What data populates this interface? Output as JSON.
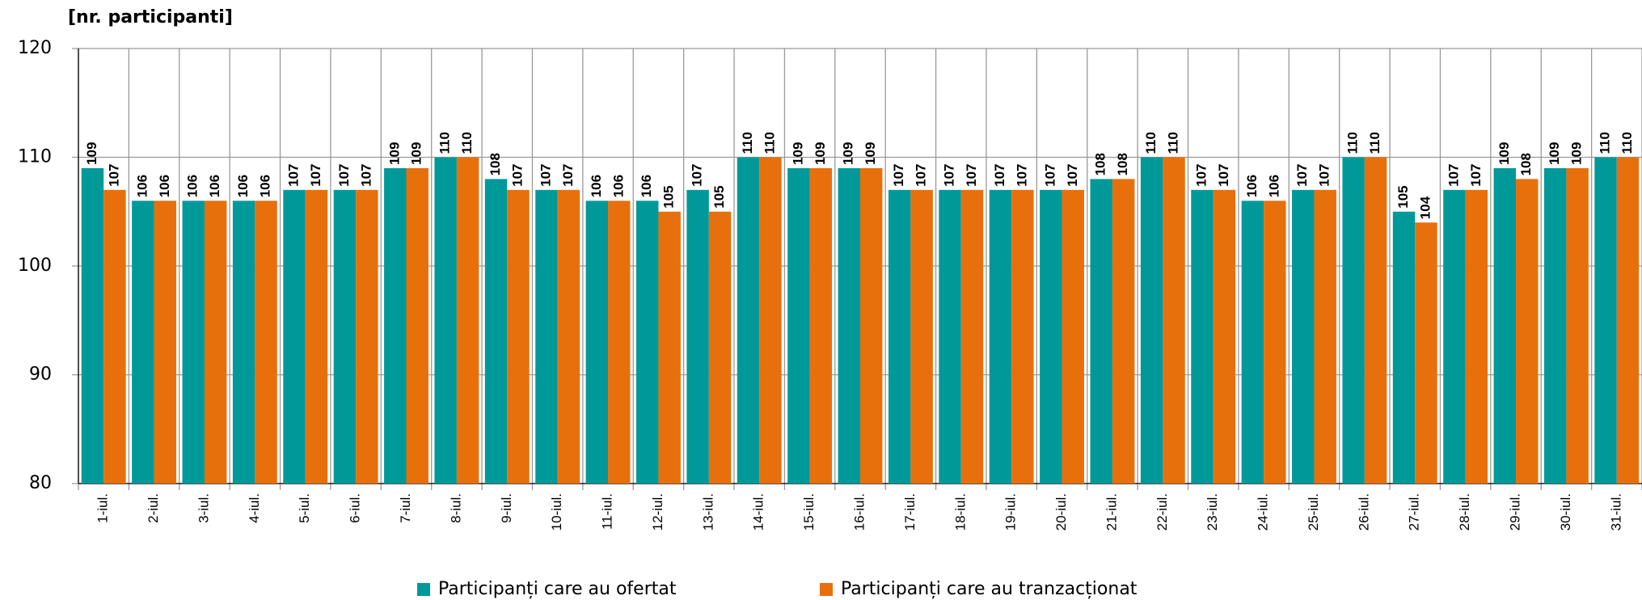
{
  "chart_data": {
    "type": "bar",
    "y_label": "[nr. participanti]",
    "categories": [
      "1-iul.",
      "2-iul.",
      "3-iul.",
      "4-iul.",
      "5-iul.",
      "6-iul.",
      "7-iul.",
      "8-iul.",
      "9-iul.",
      "10-iul.",
      "11-iul.",
      "12-iul.",
      "13-iul.",
      "14-iul.",
      "15-iul.",
      "16-iul.",
      "17-iul.",
      "18-iul.",
      "19-iul.",
      "20-iul.",
      "21-iul.",
      "22-iul.",
      "23-iul.",
      "24-iul.",
      "25-iul.",
      "26-iul.",
      "27-iul.",
      "28-iul.",
      "29-iul.",
      "30-iul.",
      "31-iul."
    ],
    "series": [
      {
        "name": "Participanți care au ofertat",
        "color": "#009999",
        "values": [
          109,
          106,
          106,
          106,
          107,
          107,
          109,
          110,
          108,
          107,
          106,
          106,
          107,
          110,
          109,
          109,
          107,
          107,
          107,
          107,
          108,
          110,
          107,
          106,
          107,
          110,
          105,
          107,
          109,
          109,
          110
        ]
      },
      {
        "name": "Participanți care au tranzacționat",
        "color": "#e8700c",
        "values": [
          107,
          106,
          106,
          106,
          107,
          107,
          109,
          110,
          107,
          107,
          106,
          105,
          105,
          110,
          109,
          109,
          107,
          107,
          107,
          107,
          108,
          110,
          107,
          106,
          107,
          110,
          104,
          107,
          108,
          109,
          110
        ]
      }
    ],
    "ylim": [
      80,
      120
    ],
    "yticks": [
      80,
      90,
      100,
      110,
      120
    ],
    "grid": true
  }
}
